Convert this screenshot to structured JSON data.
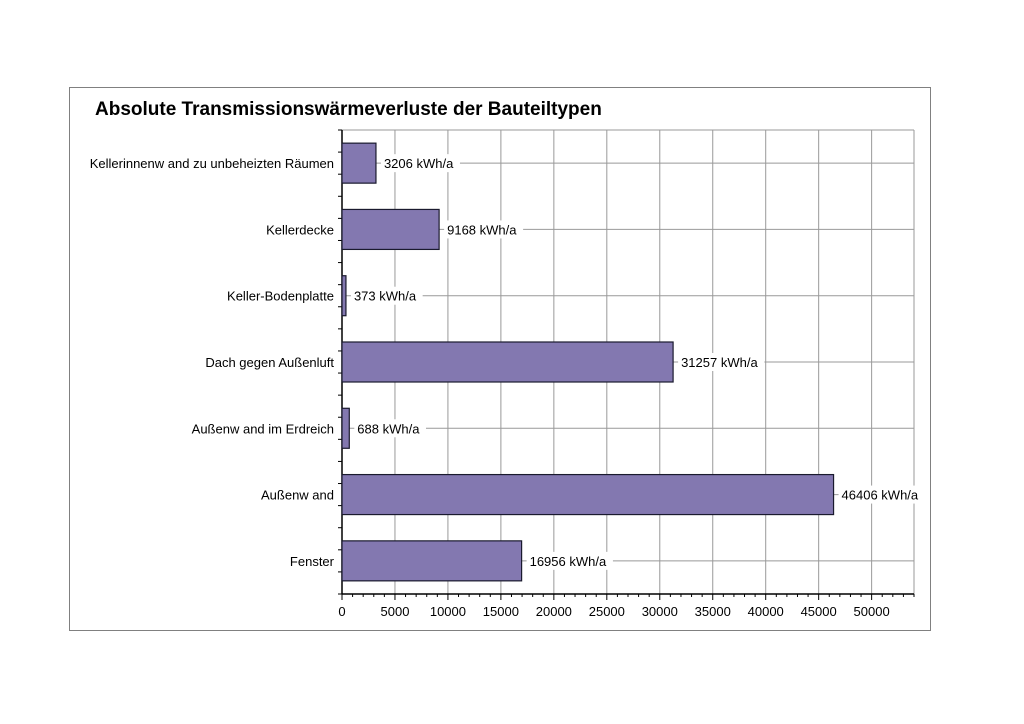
{
  "colors": {
    "bar_fill": "#8378b0",
    "bar_stroke": "#1a1a2e",
    "grid": "#999999",
    "axis": "#000000"
  },
  "chart_data": {
    "type": "bar",
    "orientation": "horizontal",
    "title": "Absolute Transmissionswärmeverluste der Bauteiltypen",
    "xlabel": "",
    "ylabel": "",
    "categories": [
      "Kellerinnenw and zu unbeheizten Räumen",
      "Kellerdecke",
      "Keller-Bodenplatte",
      "Dach gegen Außenluft",
      "Außenw and im Erdreich",
      "Außenw and",
      "Fenster"
    ],
    "values": [
      3206,
      9168,
      373,
      31257,
      688,
      46406,
      16956
    ],
    "data_labels": [
      "3206 kWh/a",
      "9168 kWh/a",
      "373 kWh/a",
      "31257 kWh/a",
      "688 kWh/a",
      "46406 kWh/a",
      "16956 kWh/a"
    ],
    "xlim": [
      0,
      54000
    ],
    "x_ticks": [
      0,
      5000,
      10000,
      15000,
      20000,
      25000,
      30000,
      35000,
      40000,
      45000,
      50000
    ],
    "x_tick_labels": [
      "0",
      "5000",
      "10000",
      "15000",
      "20000",
      "25000",
      "30000",
      "35000",
      "40000",
      "45000",
      "50000"
    ],
    "grid": true,
    "legend": "none"
  }
}
